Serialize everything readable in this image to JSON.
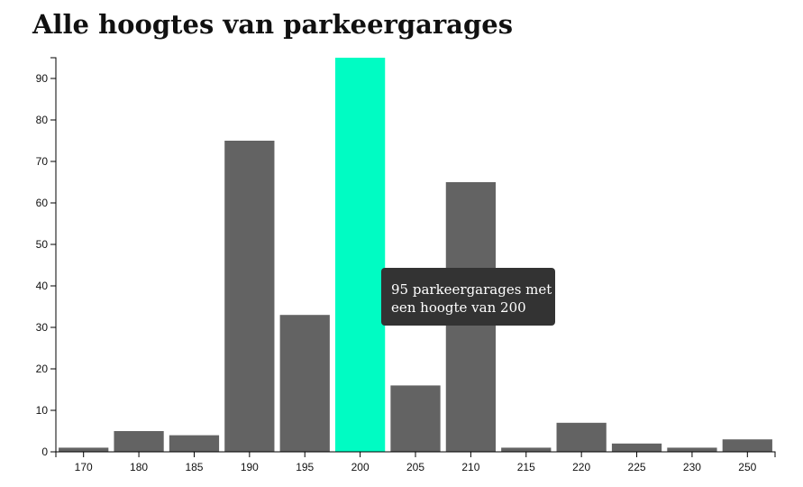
{
  "page": {
    "title": "Alle hoogtes van parkeergarages"
  },
  "tooltip": {
    "line1": "95 parkeergarages met",
    "line2": "een hoogte van 200"
  },
  "colors": {
    "bar": "#636363",
    "highlight": "#00fcc3",
    "tooltip_bg": "#333333"
  },
  "chart_data": {
    "type": "bar",
    "title": "Alle hoogtes van parkeergarages",
    "xlabel": "",
    "ylabel": "",
    "categories": [
      "170",
      "180",
      "185",
      "190",
      "195",
      "200",
      "205",
      "210",
      "215",
      "220",
      "225",
      "230",
      "250"
    ],
    "values": [
      1,
      5,
      4,
      75,
      33,
      95,
      16,
      65,
      1,
      7,
      2,
      1,
      3
    ],
    "ylim": [
      0,
      95
    ],
    "yticks": [
      0,
      10,
      20,
      30,
      40,
      50,
      60,
      70,
      80,
      90
    ],
    "highlighted_category": "200",
    "grid": false,
    "legend": "none"
  }
}
